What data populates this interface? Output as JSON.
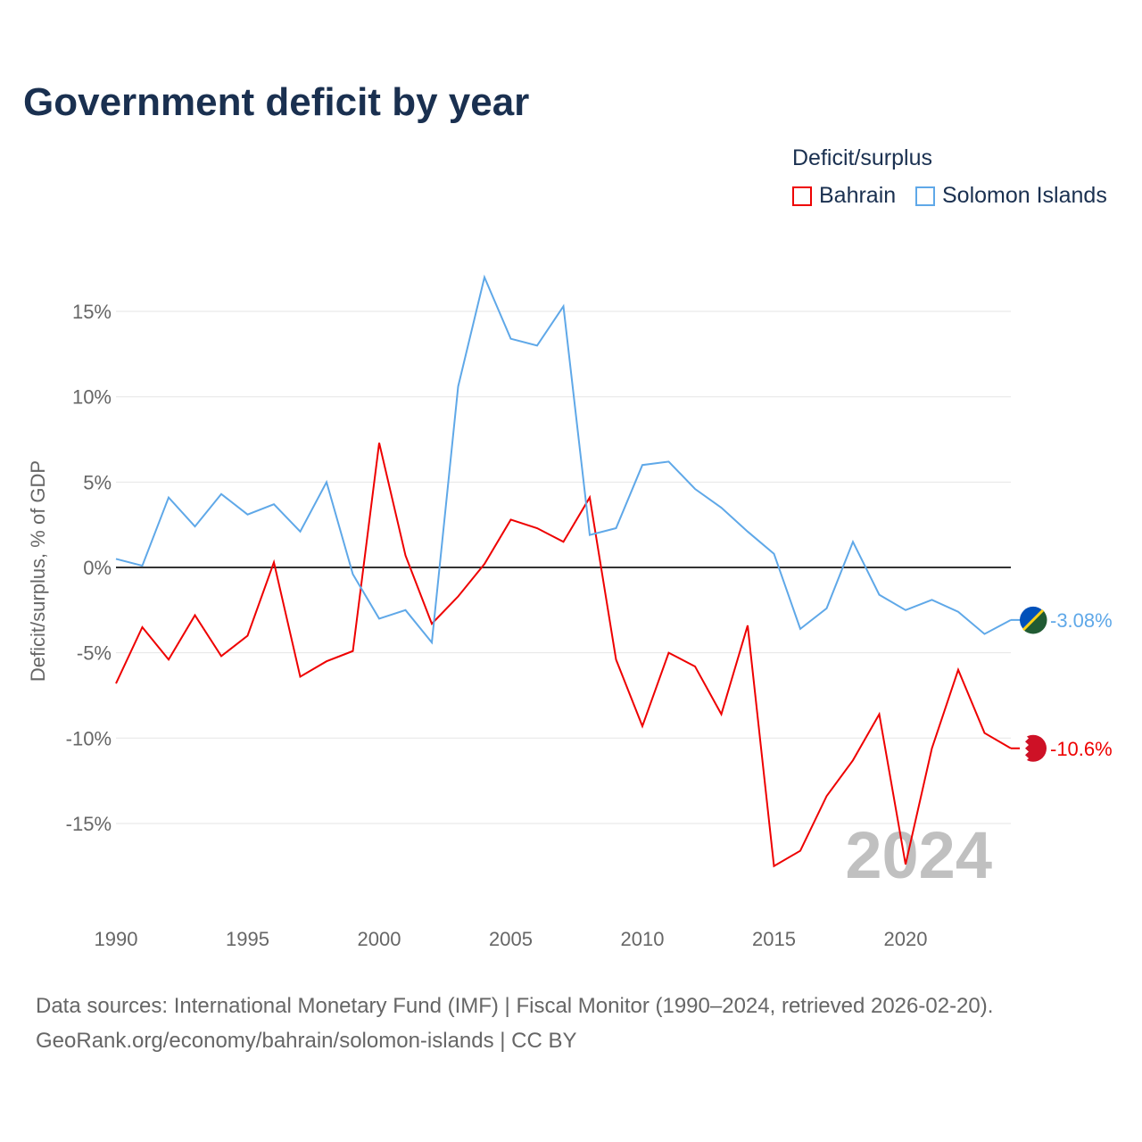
{
  "chart_data": {
    "type": "line",
    "title": "Government deficit by year",
    "ylabel": "Deficit/surplus, % of GDP",
    "xlabel": "",
    "legend_title": "Deficit/surplus",
    "legend_position": "top-right",
    "xlim": [
      1990,
      2024
    ],
    "ylim": [
      -19,
      18
    ],
    "x_ticks": [
      "1990",
      "1995",
      "2000",
      "2005",
      "2010",
      "2015",
      "2020"
    ],
    "y_ticks": [
      {
        "v": 15,
        "l": "15%"
      },
      {
        "v": 10,
        "l": "10%"
      },
      {
        "v": 5,
        "l": "5%"
      },
      {
        "v": 0,
        "l": "0%"
      },
      {
        "v": -5,
        "l": "-5%"
      },
      {
        "v": -10,
        "l": "-10%"
      },
      {
        "v": -15,
        "l": "-15%"
      }
    ],
    "year_watermark": "2024",
    "x": [
      1990,
      1991,
      1992,
      1993,
      1994,
      1995,
      1996,
      1997,
      1998,
      1999,
      2000,
      2001,
      2002,
      2003,
      2004,
      2005,
      2006,
      2007,
      2008,
      2009,
      2010,
      2011,
      2012,
      2013,
      2014,
      2015,
      2016,
      2017,
      2018,
      2019,
      2020,
      2021,
      2022,
      2023,
      2024
    ],
    "series": [
      {
        "name": "Bahrain",
        "color": "#ee0000",
        "end_label": "-10.6%",
        "values": [
          -6.8,
          -3.5,
          -5.4,
          -2.8,
          -5.2,
          -4.0,
          0.3,
          -6.4,
          -5.5,
          -4.9,
          7.3,
          0.7,
          -3.3,
          -1.7,
          0.2,
          2.8,
          2.3,
          1.5,
          4.1,
          -5.4,
          -9.3,
          -5.0,
          -5.8,
          -8.6,
          -3.4,
          -17.5,
          -16.6,
          -13.4,
          -11.3,
          -8.6,
          -17.4,
          -10.6,
          -6.0,
          -9.7,
          -10.6
        ]
      },
      {
        "name": "Solomon Islands",
        "color": "#5fa8e8",
        "end_label": "-3.08%",
        "values": [
          0.5,
          0.1,
          4.1,
          2.4,
          4.3,
          3.1,
          3.7,
          2.1,
          5.0,
          -0.4,
          -3.0,
          -2.5,
          -4.4,
          10.6,
          17.0,
          13.4,
          13.0,
          15.3,
          1.9,
          2.3,
          6.0,
          6.2,
          4.6,
          3.5,
          2.1,
          0.8,
          -3.6,
          -2.4,
          1.5,
          -1.6,
          -2.5,
          -1.9,
          -2.6,
          -3.9,
          -3.08
        ]
      }
    ]
  },
  "source": {
    "line1": "Data sources: International Monetary Fund (IMF) | Fiscal Monitor (1990–2024, retrieved 2026-02-20).",
    "line2": "GeoRank.org/economy/bahrain/solomon-islands | CC BY"
  }
}
